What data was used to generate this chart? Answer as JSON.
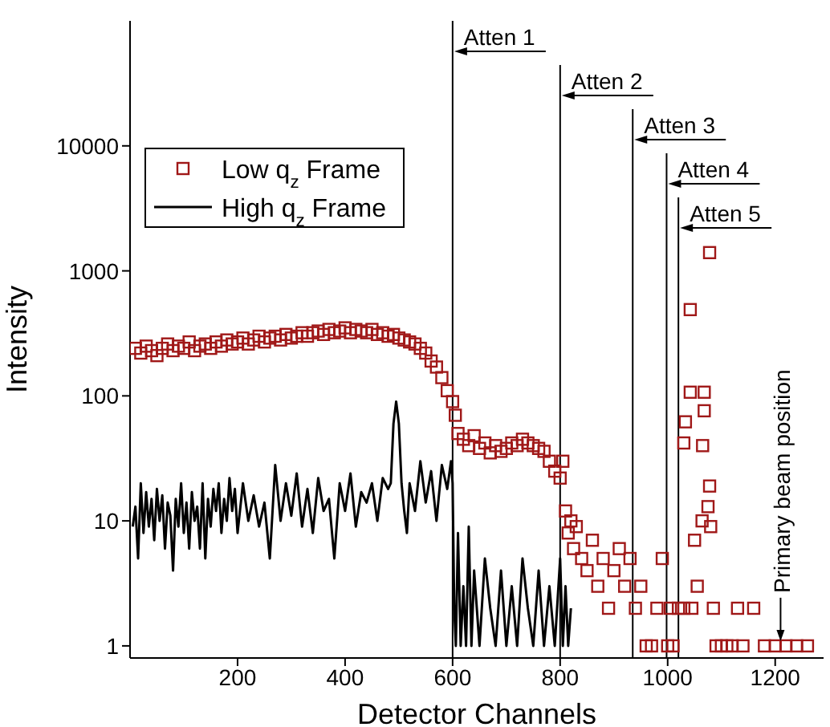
{
  "chart_data": {
    "type": "scatter",
    "xlabel": "Detector Channels",
    "ylabel": "Intensity",
    "log": "y",
    "xlim": [
      0,
      1290
    ],
    "ylim": [
      0.8,
      100000
    ],
    "xticks": [
      200,
      400,
      600,
      800,
      1000,
      1200
    ],
    "yticks": [
      1,
      10,
      100,
      1000,
      10000
    ],
    "grid": false,
    "legend": "top left",
    "marker": "square",
    "series": [
      {
        "name": "Low q$_{z}$ Frame",
        "color": "#a01818",
        "x": [
          10,
          20,
          30,
          40,
          50,
          60,
          70,
          80,
          90,
          100,
          110,
          120,
          130,
          140,
          150,
          160,
          170,
          180,
          190,
          200,
          210,
          220,
          230,
          240,
          250,
          260,
          270,
          280,
          290,
          300,
          310,
          320,
          330,
          340,
          350,
          360,
          370,
          380,
          390,
          400,
          410,
          420,
          430,
          440,
          450,
          460,
          470,
          480,
          490,
          500,
          510,
          520,
          530,
          540,
          550,
          560,
          570,
          580,
          590,
          600,
          605,
          610,
          620,
          630,
          640,
          650,
          660,
          670,
          680,
          690,
          700,
          710,
          720,
          730,
          740,
          750,
          760,
          770,
          780,
          790,
          800,
          805,
          810,
          815,
          820,
          825,
          830,
          840,
          850,
          860,
          870,
          880,
          890,
          900,
          910,
          920,
          930,
          940,
          950,
          960,
          970,
          980,
          990,
          1000,
          1005,
          1010,
          1020,
          1030,
          1030,
          1033,
          1042,
          1042,
          1045,
          1050,
          1055,
          1064,
          1065,
          1068,
          1068,
          1075,
          1078,
          1078,
          1080,
          1085,
          1090,
          1100,
          1110,
          1120,
          1130,
          1140,
          1160,
          1180,
          1200,
          1220,
          1240,
          1260
        ],
        "values": [
          240,
          220,
          250,
          230,
          210,
          240,
          260,
          230,
          250,
          240,
          270,
          230,
          250,
          260,
          240,
          270,
          250,
          280,
          260,
          270,
          290,
          260,
          280,
          300,
          270,
          290,
          300,
          280,
          310,
          290,
          300,
          320,
          300,
          320,
          330,
          310,
          340,
          320,
          330,
          350,
          320,
          340,
          330,
          320,
          340,
          310,
          320,
          300,
          310,
          290,
          280,
          270,
          260,
          240,
          220,
          190,
          170,
          140,
          110,
          90,
          70,
          50,
          45,
          40,
          48,
          38,
          42,
          35,
          40,
          36,
          38,
          42,
          40,
          45,
          42,
          40,
          38,
          36,
          30,
          25,
          22,
          30,
          12,
          8,
          10,
          6,
          9,
          5,
          4,
          7,
          3,
          5,
          2,
          4,
          6,
          3,
          5,
          2,
          3,
          1,
          1,
          2,
          5,
          1,
          2,
          1,
          2,
          42,
          2,
          62,
          490,
          107,
          2,
          7,
          3,
          10,
          40,
          107,
          76,
          13,
          1400,
          19,
          9,
          2,
          1,
          1,
          1,
          1,
          2,
          1,
          2,
          1,
          1,
          1,
          1,
          1
        ]
      },
      {
        "name": "High q$_{z}$ Frame",
        "type": "line",
        "color": "#000000",
        "marker": "none",
        "line_style": "solid",
        "x": [
          5,
          10,
          15,
          20,
          25,
          30,
          35,
          40,
          45,
          50,
          55,
          60,
          65,
          70,
          75,
          80,
          85,
          90,
          95,
          100,
          105,
          110,
          115,
          120,
          125,
          130,
          135,
          140,
          145,
          150,
          155,
          160,
          165,
          170,
          175,
          180,
          185,
          190,
          195,
          200,
          210,
          220,
          230,
          240,
          250,
          260,
          270,
          280,
          290,
          300,
          310,
          320,
          330,
          340,
          350,
          360,
          370,
          380,
          390,
          400,
          410,
          420,
          430,
          440,
          450,
          460,
          470,
          480,
          485,
          490,
          495,
          500,
          505,
          510,
          515,
          520,
          530,
          540,
          550,
          560,
          570,
          580,
          590,
          597,
          600,
          603,
          606,
          610,
          615,
          620,
          625,
          630,
          635,
          640,
          650,
          660,
          670,
          680,
          690,
          700,
          710,
          720,
          730,
          740,
          750,
          760,
          770,
          780,
          790,
          800,
          805,
          810,
          815,
          820
        ],
        "values": [
          9,
          13,
          5,
          20,
          8,
          17,
          9,
          15,
          7,
          18,
          10,
          16,
          6,
          14,
          11,
          4,
          15,
          9,
          20,
          8,
          14,
          6,
          17,
          10,
          13,
          6,
          20,
          5,
          15,
          9,
          18,
          12,
          20,
          8,
          15,
          10,
          22,
          12,
          18,
          8,
          20,
          10,
          16,
          9,
          14,
          5,
          28,
          10,
          20,
          11,
          24,
          9,
          18,
          8,
          22,
          12,
          15,
          5,
          20,
          12,
          24,
          9,
          17,
          14,
          20,
          10,
          22,
          18,
          20,
          60,
          90,
          60,
          20,
          12,
          8,
          20,
          12,
          30,
          14,
          25,
          10,
          28,
          18,
          30,
          20,
          2,
          1,
          8,
          1,
          3,
          1,
          9,
          1,
          4,
          1,
          5,
          2,
          1,
          4,
          1,
          3,
          1,
          5,
          2,
          1,
          4,
          1,
          3,
          1,
          5,
          1,
          3,
          1,
          2
        ]
      }
    ],
    "ref_lines": [
      {
        "axis": "x",
        "value": 600,
        "label": "Atten 1"
      },
      {
        "axis": "x",
        "value": 800,
        "label": "Atten 2"
      },
      {
        "axis": "x",
        "value": 935,
        "label": "Atten 3"
      },
      {
        "axis": "x",
        "value": 998,
        "label": "Atten 4"
      },
      {
        "axis": "x",
        "value": 1020,
        "label": "Atten 5"
      }
    ],
    "annotations": [
      {
        "text": "Primary beam position",
        "x": 1210,
        "y": 1
      }
    ]
  }
}
